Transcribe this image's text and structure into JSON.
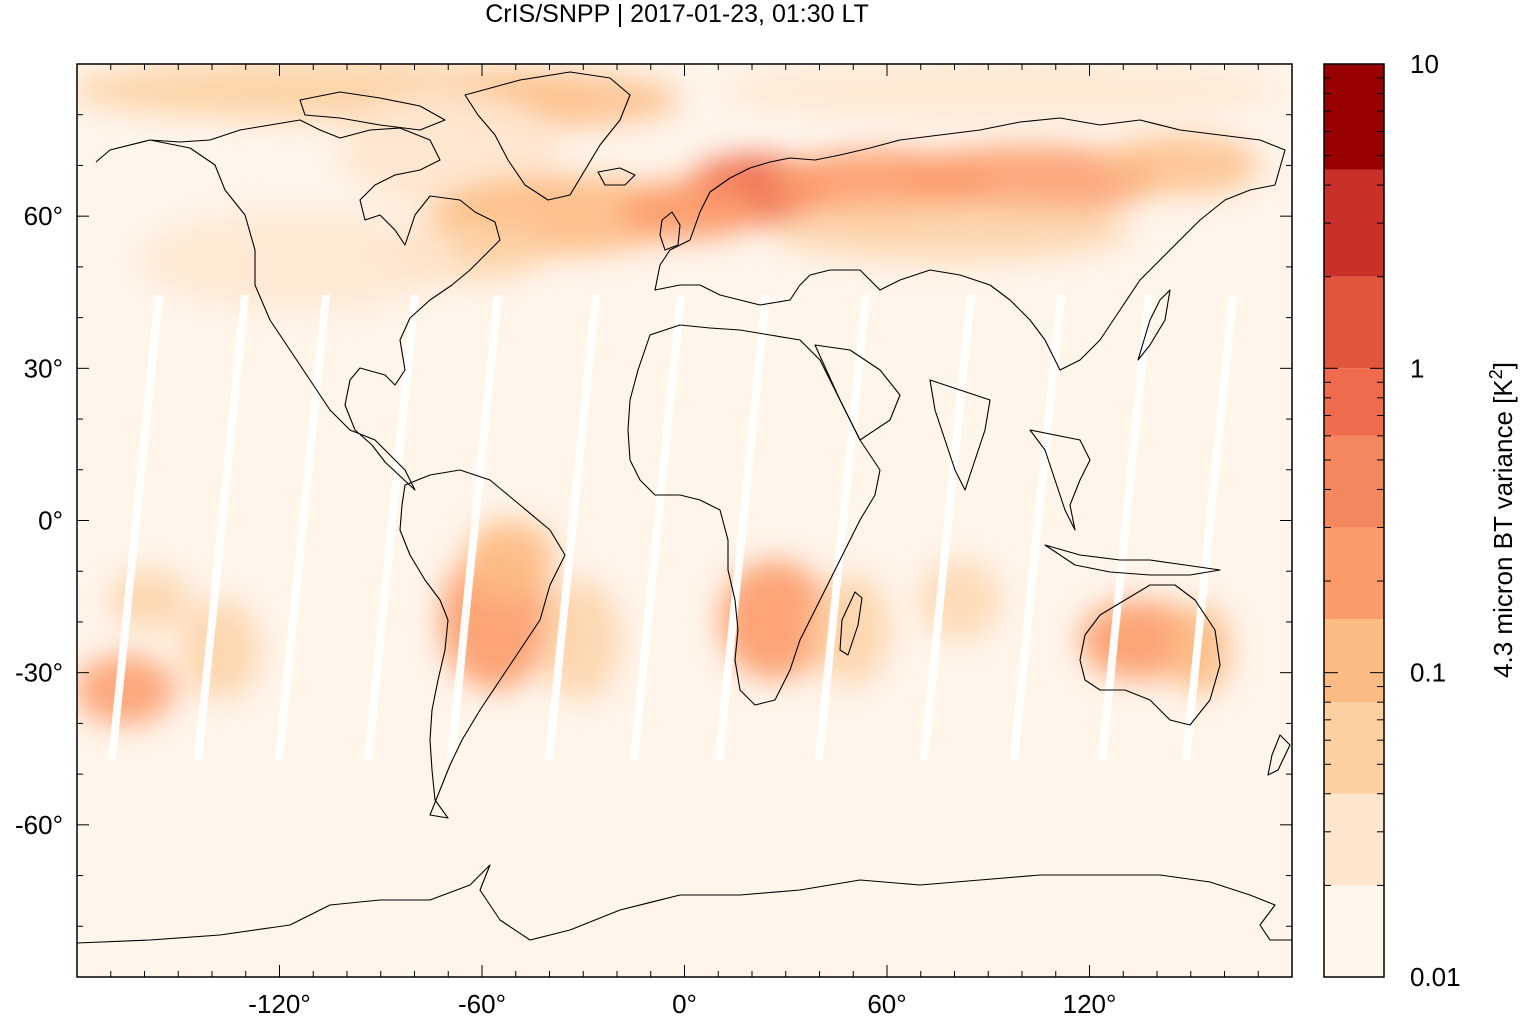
{
  "title": "CrIS/SNPP | 2017-01-23, 01:30 LT",
  "map": {
    "projection": "equirectangular",
    "lon_range": [
      -180,
      180
    ],
    "lat_range": [
      -90,
      90
    ],
    "lon_ticks": [
      {
        "value": -120,
        "label": "-120°"
      },
      {
        "value": -60,
        "label": "-60°"
      },
      {
        "value": 0,
        "label": "0°"
      },
      {
        "value": 60,
        "label": "60°"
      },
      {
        "value": 120,
        "label": "120°"
      }
    ],
    "lat_ticks": [
      {
        "value": 60,
        "label": "60°"
      },
      {
        "value": 30,
        "label": "30°"
      },
      {
        "value": 0,
        "label": "0°"
      },
      {
        "value": -30,
        "label": "-30°"
      },
      {
        "value": -60,
        "label": "-60°"
      }
    ],
    "background_color": "#fff5eb",
    "swath_gap_color": "#ffffff",
    "coastline_color": "#000000"
  },
  "colorbar": {
    "label": "4.3 micron BT variance [K",
    "label_sup": "2",
    "label_close": "]",
    "scale": "log",
    "range": [
      0.01,
      10
    ],
    "tick_labels": [
      {
        "value": 10,
        "label": "10"
      },
      {
        "value": 1,
        "label": "1"
      },
      {
        "value": 0.1,
        "label": "0.1"
      },
      {
        "value": 0.01,
        "label": "0.01"
      }
    ],
    "levels": [
      {
        "from": 0.01,
        "to": 0.02,
        "color": "#fff5eb"
      },
      {
        "from": 0.02,
        "to": 0.04,
        "color": "#fee6ce"
      },
      {
        "from": 0.04,
        "to": 0.08,
        "color": "#fdd0a2"
      },
      {
        "from": 0.08,
        "to": 0.15,
        "color": "#fdbb84"
      },
      {
        "from": 0.15,
        "to": 0.3,
        "color": "#fc9b6a"
      },
      {
        "from": 0.3,
        "to": 0.6,
        "color": "#f4875d"
      },
      {
        "from": 0.6,
        "to": 1.0,
        "color": "#ef6b4d"
      },
      {
        "from": 1.0,
        "to": 2.0,
        "color": "#e2563d"
      },
      {
        "from": 2.0,
        "to": 4.5,
        "color": "#c9302a"
      },
      {
        "from": 4.5,
        "to": 10,
        "color": "#990000"
      }
    ]
  }
}
